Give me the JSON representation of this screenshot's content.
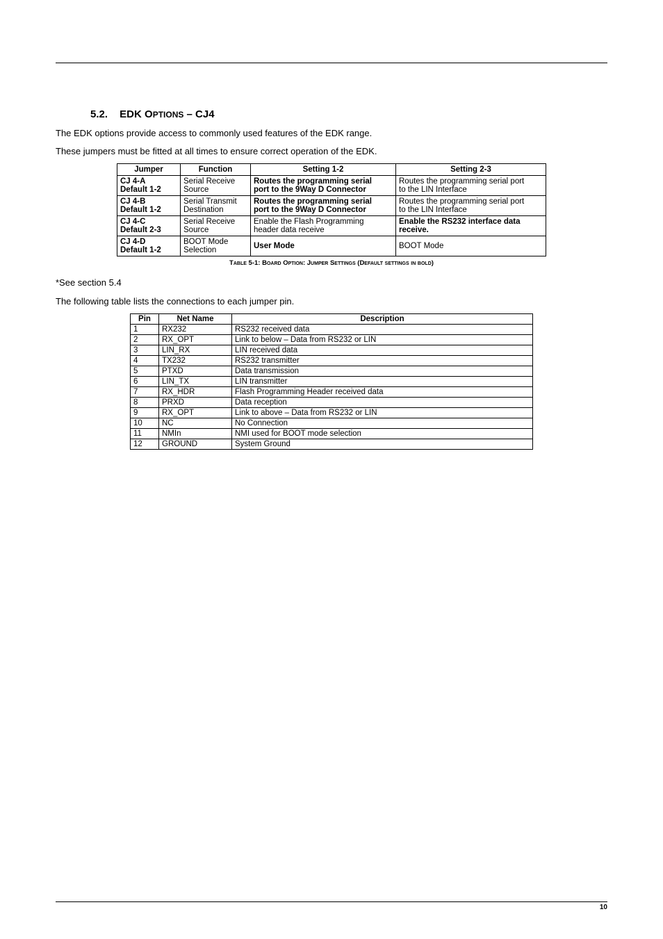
{
  "section": {
    "number": "5.2.",
    "title_prefix": "EDK O",
    "title_small": "PTIONS",
    "title_suffix": " – CJ4"
  },
  "intro1": "The EDK options provide access to commonly used features of the EDK range.",
  "intro2": "These jumpers must be fitted at all times to ensure correct operation of the EDK.",
  "jumper_table": {
    "headers": [
      "Jumper",
      "Function",
      "Setting 1-2",
      "Setting 2-3"
    ],
    "rows": [
      {
        "jumper_a": "CJ 4-A",
        "jumper_b": "Default 1-2",
        "func_a": "Serial Receive",
        "func_b": "Source",
        "s12_a": "Routes the programming serial",
        "s12_b": "port to the 9Way D Connector",
        "s12_bold": true,
        "s23_a": "Routes the programming serial port",
        "s23_b": "to the LIN Interface",
        "s23_bold": false
      },
      {
        "jumper_a": "CJ 4-B",
        "jumper_b": "Default 1-2",
        "func_a": "Serial Transmit",
        "func_b": "Destination",
        "s12_a": "Routes the programming serial",
        "s12_b": "port to the 9Way D Connector",
        "s12_bold": true,
        "s23_a": "Routes the programming serial port",
        "s23_b": "to the LIN Interface",
        "s23_bold": false
      },
      {
        "jumper_a": "CJ 4-C",
        "jumper_b": "Default 2-3",
        "func_a": "Serial Receive",
        "func_b": "Source",
        "s12_a": "Enable the Flash Programming",
        "s12_b": "header data receive",
        "s12_bold": false,
        "s23_a": "Enable the RS232 interface data",
        "s23_b": "receive.",
        "s23_bold": true
      },
      {
        "jumper_a": "CJ 4-D",
        "jumper_b": "Default 1-2",
        "func_a": "BOOT Mode",
        "func_b": "Selection",
        "s12_a": "User Mode",
        "s12_b": "",
        "s12_bold": true,
        "s23_a": "BOOT Mode",
        "s23_b": "",
        "s23_bold": false
      }
    ]
  },
  "caption": "Table 5-1: Board Option: Jumper Settings (Default settings in bold)",
  "note": "*See section 5.4",
  "intro3": "The following table lists the connections to each jumper pin.",
  "pin_table": {
    "headers": [
      "Pin",
      "Net Name",
      "Description"
    ],
    "rows": [
      {
        "pin": "1",
        "net": "RX232",
        "desc": "RS232 received data"
      },
      {
        "pin": "2",
        "net": "RX_OPT",
        "desc": "Link to below – Data from RS232 or LIN"
      },
      {
        "pin": "3",
        "net": "LIN_RX",
        "desc": "LIN received data"
      },
      {
        "pin": "4",
        "net": "TX232",
        "desc": "RS232 transmitter"
      },
      {
        "pin": "5",
        "net": "PTXD",
        "desc": "Data transmission"
      },
      {
        "pin": "6",
        "net": "LIN_TX",
        "desc": "LIN transmitter"
      },
      {
        "pin": "7",
        "net": "RX_HDR",
        "desc": "Flash Programming Header received data"
      },
      {
        "pin": "8",
        "net": "PRXD",
        "desc": "Data reception"
      },
      {
        "pin": "9",
        "net": "RX_OPT",
        "desc": "Link to above – Data from RS232 or LIN"
      },
      {
        "pin": "10",
        "net": "NC",
        "desc": "No Connection"
      },
      {
        "pin": "11",
        "net": "NMIn",
        "desc": "NMI used for BOOT mode selection"
      },
      {
        "pin": "12",
        "net": "GROUND",
        "desc": "System Ground"
      }
    ]
  },
  "page_number": "10"
}
